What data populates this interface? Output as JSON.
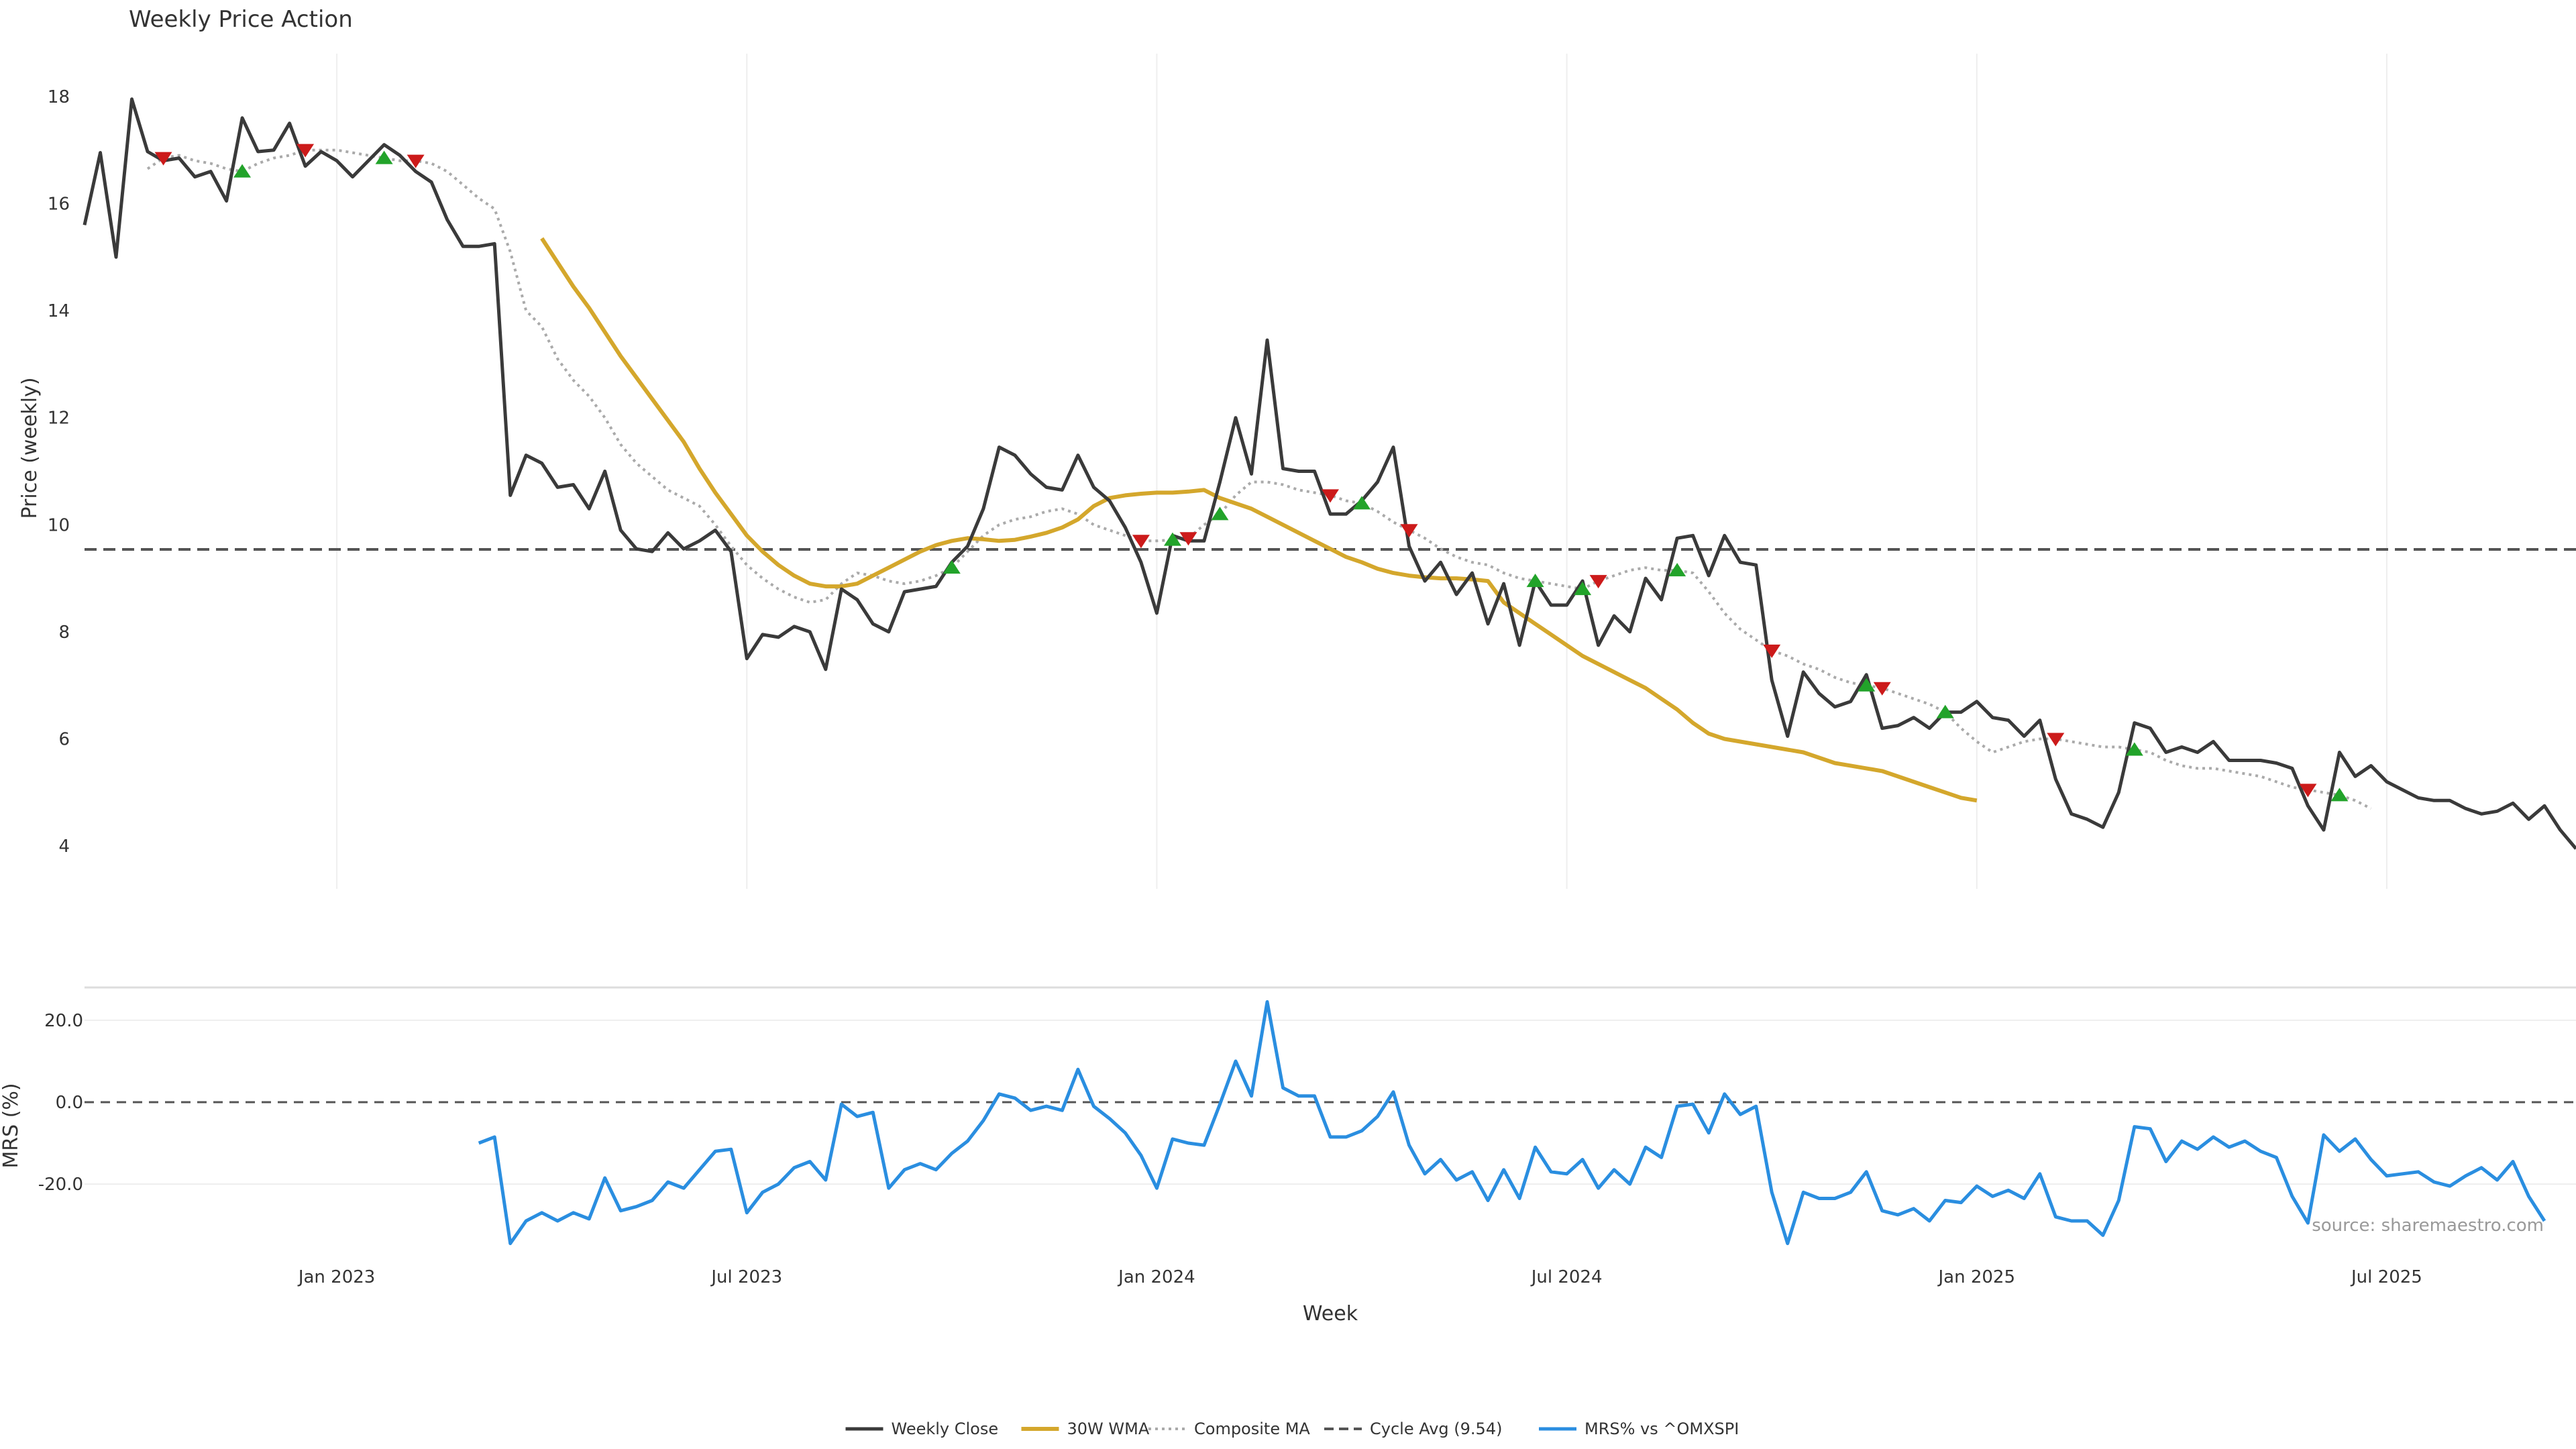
{
  "chart_data": {
    "type": "line",
    "title": "Weekly Price Action",
    "source": "source: sharemaestro.com",
    "xlabel": "Week",
    "ylabel": "Price (weekly)",
    "ylabel2": "MRS (%)",
    "x_ticks": [
      "Jan 2023",
      "Jul 2023",
      "Jan 2024",
      "Jul 2024",
      "Jan 2025",
      "Jul 2025"
    ],
    "x_tick_weeks": [
      16,
      42,
      68,
      94,
      120,
      146
    ],
    "y_ticks": [
      "4",
      "6",
      "8",
      "10",
      "12",
      "14",
      "16",
      "18"
    ],
    "y_tick_values": [
      4,
      6,
      8,
      10,
      12,
      14,
      16,
      18
    ],
    "y2_ticks": [
      "20.0",
      "0.0",
      "-20.0"
    ],
    "y2_tick_values": [
      20,
      0,
      -20
    ],
    "ylim": [
      3.2,
      18.8
    ],
    "y2lim": [
      -38,
      28
    ],
    "cycle_avg": 9.54,
    "colors": {
      "close": "#3a3a3a",
      "wma": "#d4a72c",
      "composite": "#aaaaaa",
      "cycle": "#555555",
      "mrs": "#2a8ee0",
      "sell": "#cc1a1a",
      "buy": "#22a32a",
      "grid": "#eeeeee"
    },
    "legend": [
      {
        "label": "Weekly Close",
        "style": "close"
      },
      {
        "label": "30W WMA",
        "style": "wma"
      },
      {
        "label": "Composite MA",
        "style": "composite"
      },
      {
        "label": "Cycle Avg (9.54)",
        "style": "cycle"
      },
      {
        "label": "MRS% vs ^OMXSPI",
        "style": "mrs"
      }
    ],
    "close": [
      15.6,
      16.95,
      15.0,
      17.95,
      16.97,
      16.8,
      16.85,
      16.5,
      16.6,
      16.05,
      17.6,
      16.97,
      17.0,
      17.5,
      16.7,
      16.97,
      16.8,
      16.5,
      16.8,
      17.1,
      16.9,
      16.6,
      16.4,
      15.7,
      15.2,
      15.2,
      15.25,
      10.55,
      11.3,
      11.15,
      10.7,
      10.75,
      10.3,
      11.0,
      9.9,
      9.55,
      9.5,
      9.85,
      9.55,
      9.7,
      9.9,
      9.5,
      7.5,
      7.95,
      7.9,
      8.1,
      8.0,
      7.3,
      8.8,
      8.6,
      8.15,
      8.0,
      8.75,
      8.8,
      8.85,
      9.3,
      9.6,
      10.3,
      11.45,
      11.3,
      10.95,
      10.7,
      10.65,
      11.3,
      10.7,
      10.45,
      9.95,
      9.3,
      8.35,
      9.8,
      9.7,
      9.7,
      10.8,
      12.0,
      10.95,
      13.45,
      11.05,
      11.0,
      11.0,
      10.2,
      10.2,
      10.45,
      10.8,
      11.45,
      9.6,
      8.95,
      9.3,
      8.7,
      9.1,
      8.15,
      8.9,
      7.75,
      8.95,
      8.5,
      8.5,
      8.95,
      7.75,
      8.3,
      8.0,
      9.0,
      8.6,
      9.75,
      9.8,
      9.05,
      9.8,
      9.3,
      9.25,
      7.1,
      6.05,
      7.25,
      6.85,
      6.6,
      6.7,
      7.2,
      6.2,
      6.25,
      6.4,
      6.2,
      6.5,
      6.5,
      6.7,
      6.4,
      6.35,
      6.05,
      6.35,
      5.25,
      4.6,
      4.5,
      4.35,
      5.0,
      6.3,
      6.2,
      5.75,
      5.85,
      5.75,
      5.95,
      5.6,
      5.6,
      5.6,
      5.55,
      5.45,
      4.75,
      4.3,
      5.75,
      5.3,
      5.5,
      5.2,
      5.05,
      4.9,
      4.85,
      4.85,
      4.7,
      4.6,
      4.65,
      4.8,
      4.5,
      4.75,
      4.3,
      3.95
    ],
    "wma_start": 29,
    "wma": [
      15.35,
      14.9,
      14.45,
      14.05,
      13.6,
      13.15,
      12.75,
      12.35,
      11.95,
      11.55,
      11.05,
      10.6,
      10.2,
      9.8,
      9.5,
      9.25,
      9.05,
      8.9,
      8.85,
      8.85,
      8.9,
      9.05,
      9.2,
      9.35,
      9.5,
      9.62,
      9.7,
      9.75,
      9.73,
      9.7,
      9.72,
      9.78,
      9.85,
      9.95,
      10.1,
      10.35,
      10.5,
      10.55,
      10.58,
      10.6,
      10.6,
      10.62,
      10.65,
      10.5,
      10.4,
      10.3,
      10.15,
      10.0,
      9.85,
      9.7,
      9.55,
      9.4,
      9.3,
      9.18,
      9.1,
      9.05,
      9.02,
      9.0,
      9.0,
      8.98,
      8.95,
      8.55,
      8.35,
      8.15,
      7.95,
      7.75,
      7.55,
      7.4,
      7.25,
      7.1,
      6.95,
      6.75,
      6.55,
      6.3,
      6.1,
      6.0,
      5.95,
      5.9,
      5.85,
      5.8,
      5.75,
      5.65,
      5.55,
      5.5,
      5.45,
      5.4,
      5.3,
      5.2,
      5.1,
      5.0,
      4.9,
      4.85
    ],
    "composite_start": 4,
    "composite": [
      16.65,
      16.85,
      16.9,
      16.8,
      16.75,
      16.65,
      16.6,
      16.75,
      16.85,
      16.9,
      17.0,
      17.0,
      17.0,
      16.95,
      16.9,
      16.85,
      16.8,
      16.8,
      16.75,
      16.6,
      16.35,
      16.1,
      15.9,
      15.1,
      14.0,
      13.7,
      13.1,
      12.7,
      12.4,
      12.0,
      11.5,
      11.15,
      10.9,
      10.65,
      10.5,
      10.35,
      10.0,
      9.6,
      9.25,
      9.0,
      8.8,
      8.65,
      8.55,
      8.6,
      8.9,
      9.1,
      9.05,
      8.95,
      8.9,
      8.95,
      9.05,
      9.2,
      9.5,
      9.8,
      10.0,
      10.1,
      10.15,
      10.25,
      10.3,
      10.2,
      10.0,
      9.9,
      9.8,
      9.7,
      9.7,
      9.72,
      9.75,
      10.0,
      10.2,
      10.55,
      10.8,
      10.8,
      10.75,
      10.65,
      10.6,
      10.55,
      10.45,
      10.4,
      10.25,
      10.05,
      9.9,
      9.75,
      9.55,
      9.4,
      9.3,
      9.25,
      9.1,
      9.0,
      8.95,
      8.9,
      8.85,
      8.8,
      8.95,
      9.05,
      9.15,
      9.2,
      9.15,
      9.15,
      9.1,
      8.75,
      8.35,
      8.05,
      7.85,
      7.65,
      7.55,
      7.4,
      7.3,
      7.15,
      7.05,
      7.0,
      6.95,
      6.85,
      6.75,
      6.65,
      6.5,
      6.2,
      5.95,
      5.75,
      5.85,
      5.95,
      6.0,
      6.0,
      5.95,
      5.9,
      5.85,
      5.85,
      5.8,
      5.75,
      5.6,
      5.5,
      5.45,
      5.45,
      5.4,
      5.35,
      5.3,
      5.2,
      5.1,
      5.05,
      5.0,
      4.95,
      4.85,
      4.7
    ],
    "mrs_start": 25,
    "mrs": [
      -10,
      -8.5,
      -34.5,
      -29,
      -27,
      -29,
      -27,
      -28.5,
      -18.5,
      -26.5,
      -25.5,
      -24,
      -19.5,
      -21,
      -16.5,
      -12,
      -11.5,
      -27,
      -22,
      -20,
      -16,
      -14.5,
      -19,
      -0.5,
      -3.5,
      -2.5,
      -21,
      -16.5,
      -15,
      -16.5,
      -12.5,
      -9.5,
      -4.5,
      2,
      1,
      -2,
      -1,
      -2,
      8,
      -1,
      -4,
      -7.5,
      -13,
      -21,
      -9,
      -10,
      -10.5,
      -0.5,
      10,
      1.5,
      24.5,
      3.5,
      1.5,
      1.5,
      -8.5,
      -8.5,
      -7,
      -3.5,
      2.5,
      -10.5,
      -17.5,
      -14,
      -19,
      -17,
      -24,
      -16.5,
      -23.5,
      -11,
      -17,
      -17.5,
      -14,
      -21,
      -16.5,
      -20,
      -11,
      -13.5,
      -1,
      -0.5,
      -7.5,
      2,
      -3,
      -1,
      -22,
      -34.5,
      -22,
      -23.5,
      -23.5,
      -22,
      -17,
      -26.5,
      -27.5,
      -26,
      -29,
      -24,
      -24.5,
      -20.5,
      -23,
      -21.5,
      -23.5,
      -17.5,
      -28,
      -29,
      -29,
      -32.5,
      -24,
      -6,
      -6.5,
      -14.5,
      -9.5,
      -11.5,
      -8.5,
      -11,
      -9.5,
      -12,
      -13.5,
      -23,
      -29.5,
      -8,
      -12,
      -9,
      -14,
      -18,
      -17.5,
      -17,
      -19.5,
      -20.5,
      -18,
      -16,
      -19,
      -14.5,
      -23,
      -29
    ]
  }
}
